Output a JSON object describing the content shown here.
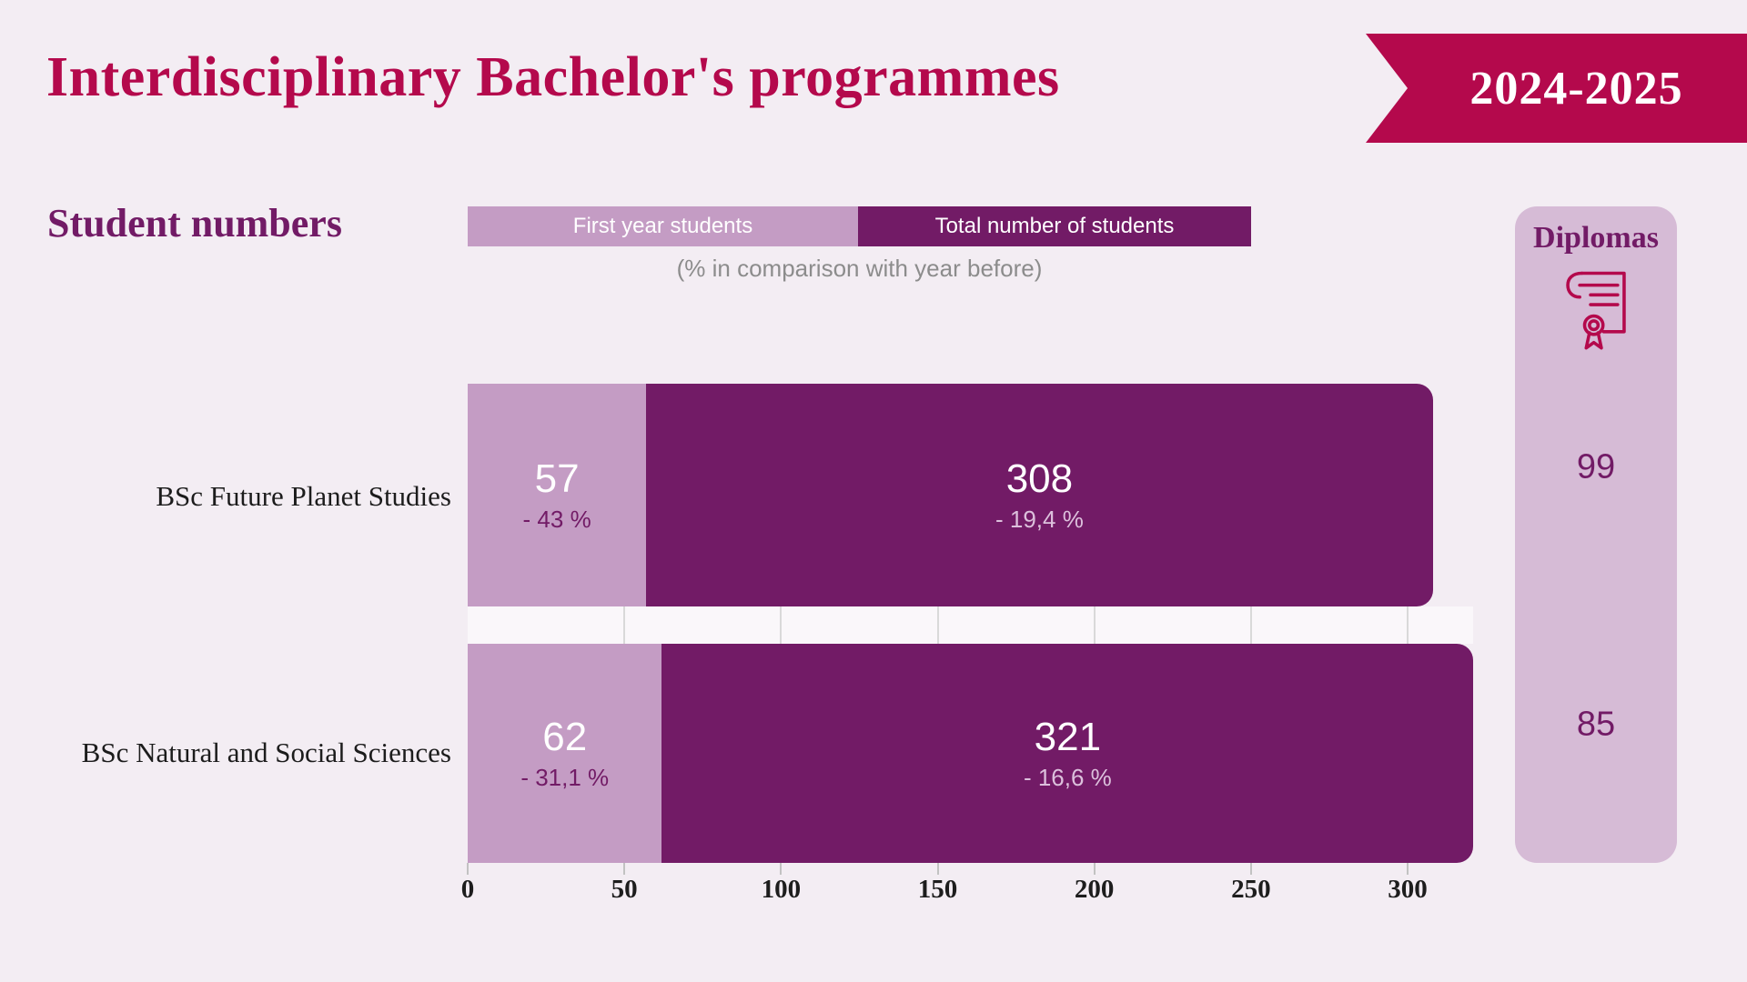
{
  "header": {
    "title": "Interdisciplinary Bachelor's programmes",
    "year_badge": "2024-2025"
  },
  "section": {
    "title": "Student numbers",
    "note": "(% in comparison with year before)"
  },
  "diplomas_panel": {
    "title": "Diplomas",
    "icon": "diploma-certificate-icon"
  },
  "colors": {
    "background": "#f3edf3",
    "accent_red": "#b4094c",
    "dark_purple": "#721b66",
    "light_purple": "#c49cc4",
    "panel_purple": "#d6bbd6",
    "note_gray": "#8c8c8c"
  },
  "chart_data": {
    "type": "bar",
    "orientation": "horizontal",
    "stacked": true,
    "title": "Student numbers",
    "note": "(% in comparison with year before)",
    "series_names": [
      "First year students",
      "Total number of students"
    ],
    "x_ticks": [
      0,
      50,
      100,
      150,
      200,
      250,
      300
    ],
    "xlim": [
      0,
      325
    ],
    "legend_position": "top",
    "rows": [
      {
        "label": "BSc Future Planet Studies",
        "first_year_students": 57,
        "first_year_change": "- 43 %",
        "total_students": 308,
        "total_change": "- 19,4 %",
        "diplomas": 99
      },
      {
        "label": "BSc Natural and Social Sciences",
        "first_year_students": 62,
        "first_year_change": "- 31,1 %",
        "total_students": 321,
        "total_change": "- 16,6 %",
        "diplomas": 85
      }
    ]
  }
}
